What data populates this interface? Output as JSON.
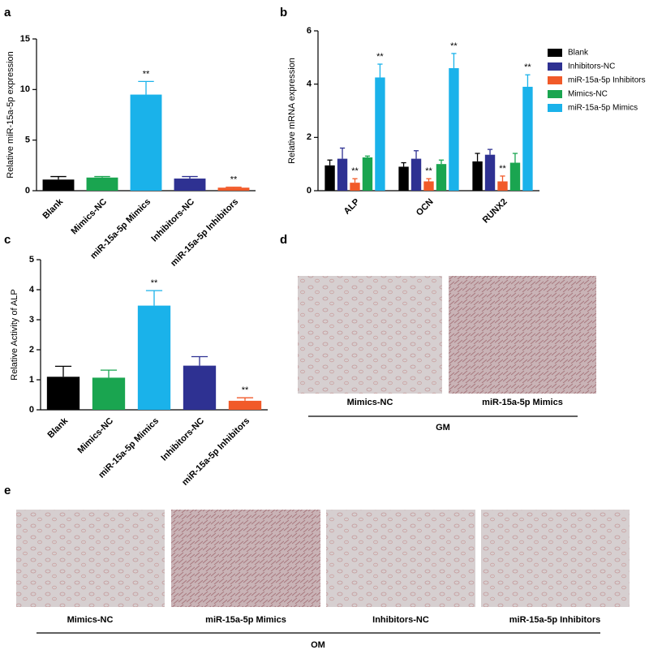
{
  "chart_data": [
    {
      "type": "bar",
      "panel_label": "a",
      "y_label": "Relative miR-15a-5p expression",
      "categories": [
        "Blank",
        "Mimics-NC",
        "miR-15a-5p Mimics",
        "Inhibitors-NC",
        "miR-15a-5p Inhibitors"
      ],
      "values": [
        1.1,
        1.3,
        9.5,
        1.2,
        0.3
      ],
      "errors": [
        0.3,
        0.1,
        1.3,
        0.2,
        0.05
      ],
      "significance": [
        null,
        null,
        "**",
        null,
        "**"
      ],
      "colors": [
        "#000000",
        "#1aa550",
        "#1ab2ea",
        "#2e3192",
        "#f15a29"
      ],
      "ylim": [
        0,
        15
      ],
      "yticks": [
        0,
        5,
        10,
        15
      ]
    },
    {
      "type": "grouped-bar",
      "panel_label": "b",
      "y_label": "Relative mRNA expression",
      "categories": [
        "ALP",
        "OCN",
        "RUNX2"
      ],
      "series": [
        {
          "name": "Blank",
          "color": "#000000",
          "values": [
            0.95,
            0.9,
            1.1
          ],
          "errors": [
            0.2,
            0.15,
            0.3
          ],
          "significance": [
            null,
            null,
            null
          ]
        },
        {
          "name": "Inhibitors-NC",
          "color": "#2e3192",
          "values": [
            1.2,
            1.2,
            1.35
          ],
          "errors": [
            0.4,
            0.3,
            0.2
          ],
          "significance": [
            null,
            null,
            null
          ]
        },
        {
          "name": "miR-15a-5p Inhibitors",
          "color": "#f15a29",
          "values": [
            0.3,
            0.35,
            0.35
          ],
          "errors": [
            0.15,
            0.1,
            0.2
          ],
          "significance": [
            "**",
            "**",
            "**"
          ]
        },
        {
          "name": "Mimics-NC",
          "color": "#1aa550",
          "values": [
            1.25,
            1.0,
            1.05
          ],
          "errors": [
            0.05,
            0.15,
            0.35
          ],
          "significance": [
            null,
            null,
            null
          ]
        },
        {
          "name": "miR-15a-5p Mimics",
          "color": "#1ab2ea",
          "values": [
            4.25,
            4.6,
            3.9
          ],
          "errors": [
            0.5,
            0.55,
            0.45
          ],
          "significance": [
            "**",
            "**",
            "**"
          ]
        }
      ],
      "ylim": [
        0,
        6
      ],
      "yticks": [
        0,
        2,
        4,
        6
      ],
      "legend": "right"
    },
    {
      "type": "bar",
      "panel_label": "c",
      "y_label": "Relative Activity of ALP",
      "categories": [
        "Blank",
        "Mimics-NC",
        "miR-15a-5p Mimics",
        "Inhibitors-NC",
        "miR-15a-5p Inhibitors"
      ],
      "values": [
        1.1,
        1.07,
        3.47,
        1.47,
        0.3
      ],
      "errors": [
        0.35,
        0.25,
        0.5,
        0.3,
        0.1
      ],
      "significance": [
        null,
        null,
        "**",
        null,
        "**"
      ],
      "colors": [
        "#000000",
        "#1aa550",
        "#1ab2ea",
        "#2e3192",
        "#f15a29"
      ],
      "ylim": [
        0,
        5
      ],
      "yticks": [
        0,
        1,
        2,
        3,
        4,
        5
      ]
    }
  ],
  "images": [
    {
      "panel_label": "d",
      "labels": [
        "Mimics-NC",
        "miR-15a-5p Mimics"
      ],
      "group": "GM"
    },
    {
      "panel_label": "e",
      "labels": [
        "Mimics-NC",
        "miR-15a-5p Mimics",
        "Inhibitors-NC",
        "miR-15a-5p Inhibitors"
      ],
      "group": "OM"
    }
  ]
}
